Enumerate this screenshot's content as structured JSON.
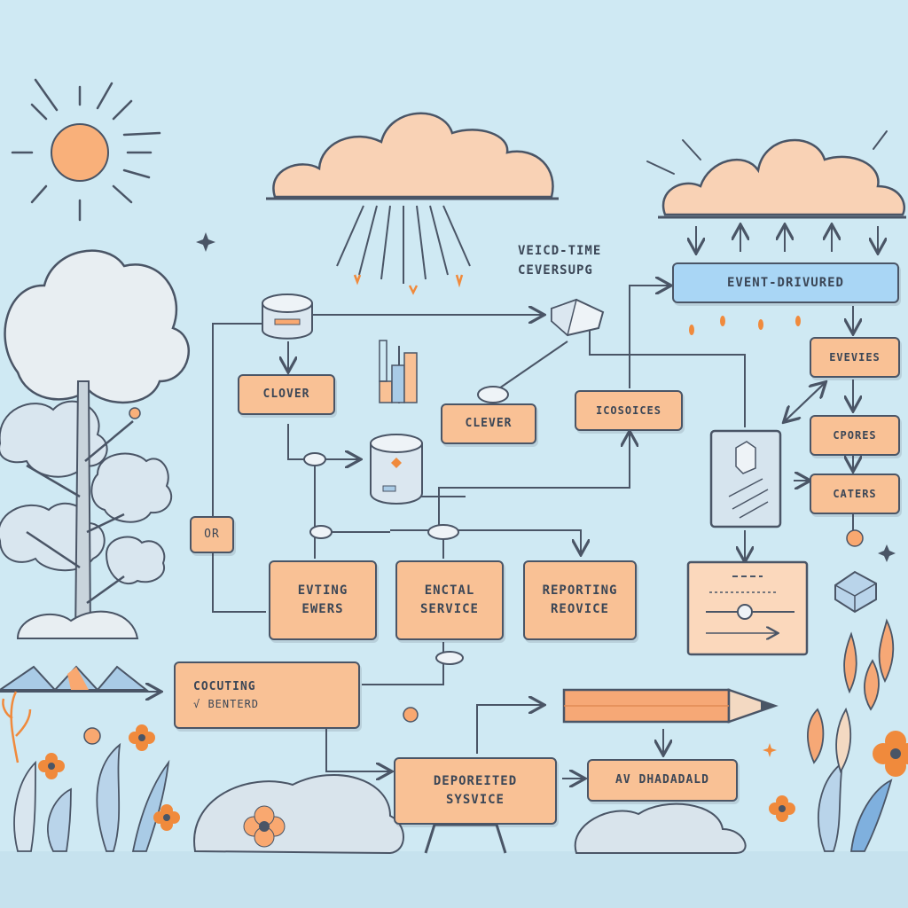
{
  "diagram": {
    "header_label": {
      "line1": "VEICD-TIME",
      "line2": "CEVERSUPG"
    },
    "nodes": {
      "event_driven": "EVENT-DRIVURED",
      "clover": "CLOVER",
      "clever": "CLEVER",
      "icosoices": "ICOSOICES",
      "or": "OR",
      "evtng_evers": {
        "line1": "EVTING",
        "line2": "EWERS"
      },
      "enctal_service": {
        "line1": "ENCTAL",
        "line2": "SERVICE"
      },
      "reporting_reovice": {
        "line1": "REPORTING",
        "line2": "REOVICE"
      },
      "evevies": "EVEVIES",
      "cpores": "CPORES",
      "caters": "CATERS",
      "cocuting": {
        "line1": "COCUTING",
        "line2": "√ BENTERD"
      },
      "deporeited": {
        "line1": "DEPOREITED",
        "line2": "SYSVICE"
      },
      "av_dhadadald": "AV DHADADALD"
    },
    "colors": {
      "sky": "#cfe9f3",
      "box_fill": "#f9c195",
      "accent_blue": "#a9d6f5",
      "ink": "#4a5566",
      "flower": "#f08a3c"
    }
  }
}
